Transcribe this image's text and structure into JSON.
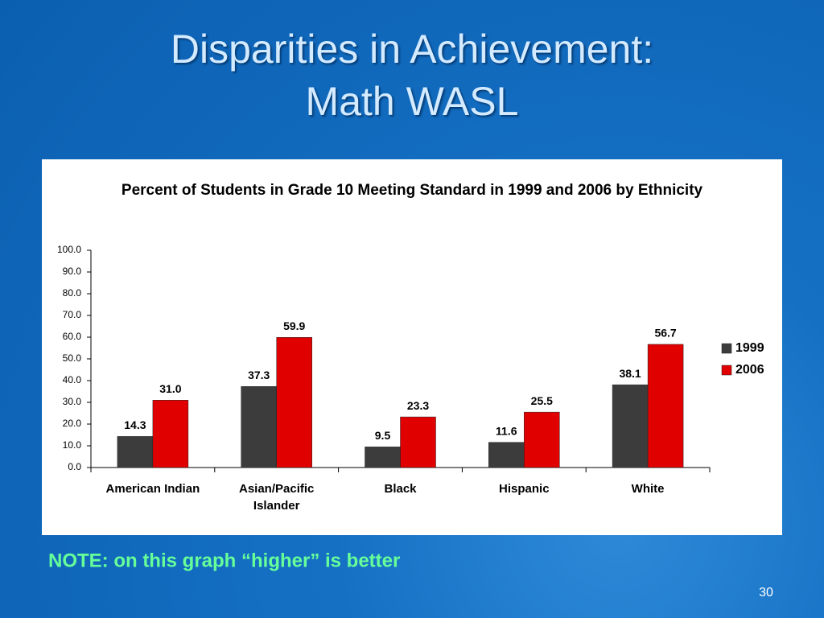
{
  "slide_title": [
    "Disparities in Achievement:",
    "Math WASL"
  ],
  "chart_data": {
    "type": "bar",
    "title": "Percent of Students in Grade 10 Meeting Standard in 1999 and 2006 by Ethnicity",
    "categories": [
      "American Indian",
      "Asian/Pacific Islander",
      "Black",
      "Hispanic",
      "White"
    ],
    "series": [
      {
        "name": "1999",
        "color": "#3c3c3c",
        "values": [
          14.3,
          37.3,
          9.5,
          11.6,
          38.1
        ],
        "value_labels": [
          "14.3",
          "37.3",
          "9.5",
          "11.6",
          "38.1"
        ]
      },
      {
        "name": "2006",
        "color": "#e00000",
        "values": [
          31.0,
          59.9,
          23.3,
          25.5,
          56.7
        ],
        "value_labels": [
          "31.0",
          "59.9",
          "23.3",
          "25.5",
          "56.7"
        ]
      }
    ],
    "ylim": [
      0,
      100
    ],
    "yticks": [
      {
        "value": 0,
        "label": "0.0"
      },
      {
        "value": 10,
        "label": "10.0"
      },
      {
        "value": 20,
        "label": "20.0"
      },
      {
        "value": 30,
        "label": "30.0"
      },
      {
        "value": 40,
        "label": "40.0"
      },
      {
        "value": 50,
        "label": "50.0"
      },
      {
        "value": 60,
        "label": "60.0"
      },
      {
        "value": 70,
        "label": "70.0"
      },
      {
        "value": 80,
        "label": "80.0"
      },
      {
        "value": 90,
        "label": "90.0"
      },
      {
        "value": 100,
        "label": "100.0"
      }
    ],
    "legend": "right"
  },
  "note": "NOTE: on this graph “higher” is better",
  "page_number": "30"
}
